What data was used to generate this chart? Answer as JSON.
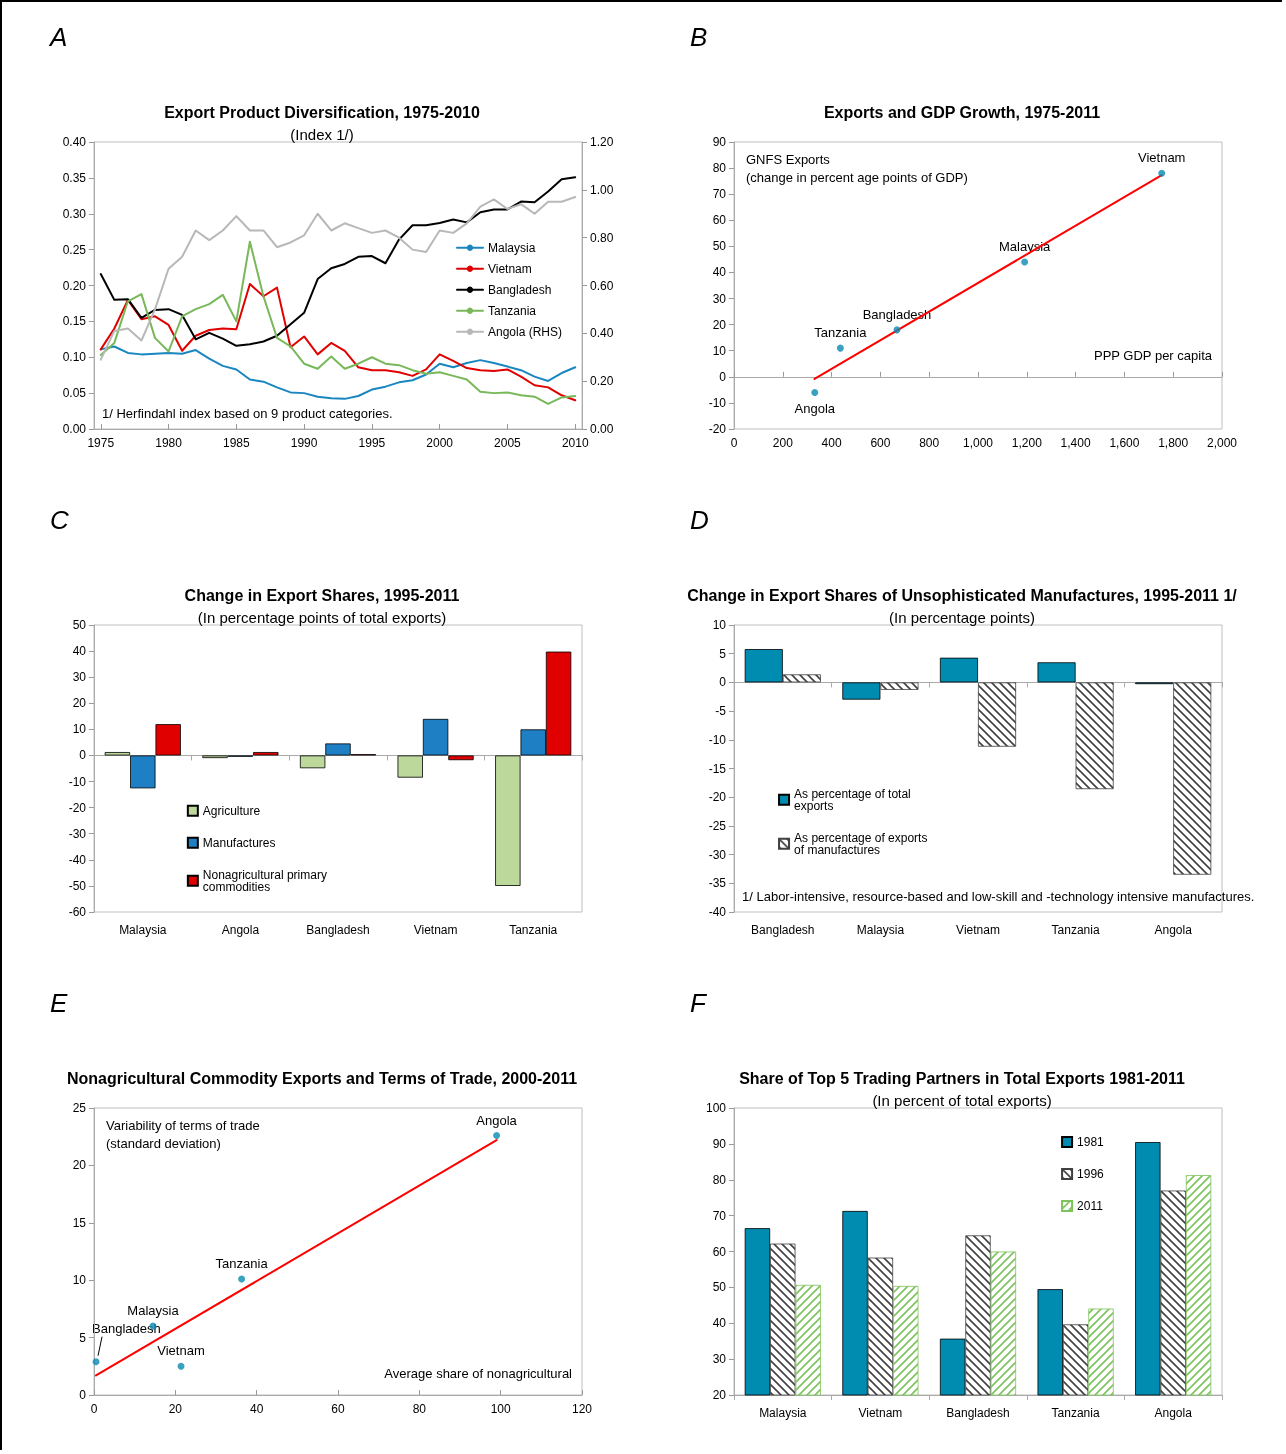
{
  "chart_data": [
    {
      "type": "line",
      "title": "Export Product Diversification, 1975-2010",
      "subtitle": "(Index 1/)",
      "annotations": [
        "A",
        "1/ Herfindahl index based on 9 product categories."
      ],
      "legend": "right",
      "x": [
        1975,
        1976,
        1977,
        1978,
        1979,
        1980,
        1981,
        1982,
        1983,
        1984,
        1985,
        1986,
        1987,
        1988,
        1989,
        1990,
        1991,
        1992,
        1993,
        1994,
        1995,
        1996,
        1997,
        1998,
        1999,
        2000,
        2001,
        2002,
        2003,
        2004,
        2005,
        2006,
        2007,
        2008,
        2009,
        2010
      ],
      "xlim": [
        1974.5,
        2010.5
      ],
      "xticks": [
        1975,
        1980,
        1985,
        1990,
        1995,
        2000,
        2005,
        2010
      ],
      "ylim": [
        0,
        0.4
      ],
      "yticks": [
        {
          "value": 0,
          "label": "0.00"
        },
        0.05,
        {
          "value": 0.1,
          "label": "0.10"
        },
        0.15,
        {
          "value": 0.2,
          "label": "0.20"
        },
        0.25,
        {
          "value": 0.3,
          "label": "0.30"
        },
        0.35,
        {
          "value": 0.4,
          "label": "0.40"
        }
      ],
      "y2lim": [
        0,
        1.2
      ],
      "y2ticks": [
        {
          "value": 0,
          "label": "0.00"
        },
        {
          "value": 0.2,
          "label": "0.20"
        },
        {
          "value": 0.4,
          "label": "0.40"
        },
        {
          "value": 0.6,
          "label": "0.60"
        },
        {
          "value": 0.8,
          "label": "0.80"
        },
        {
          "value": 1,
          "label": "1.00"
        },
        {
          "value": 1.2,
          "label": "1.20"
        }
      ],
      "series": [
        {
          "name": "Malaysia",
          "color": "#1a86c0",
          "values": [
            0.111,
            0.115,
            0.106,
            0.104,
            0.105,
            0.106,
            0.105,
            0.11,
            0.098,
            0.088,
            0.083,
            0.069,
            0.066,
            0.058,
            0.051,
            0.05,
            0.045,
            0.043,
            0.042,
            0.046,
            0.055,
            0.059,
            0.065,
            0.068,
            0.076,
            0.091,
            0.086,
            0.092,
            0.096,
            0.092,
            0.087,
            0.082,
            0.073,
            0.067,
            0.078,
            0.086
          ]
        },
        {
          "name": "Vietnam",
          "color": "#e00000",
          "values": [
            0.111,
            0.14,
            0.18,
            0.153,
            0.157,
            0.145,
            0.109,
            0.13,
            0.138,
            0.14,
            0.139,
            0.202,
            0.185,
            0.197,
            0.114,
            0.129,
            0.104,
            0.12,
            0.109,
            0.086,
            0.082,
            0.082,
            0.079,
            0.074,
            0.083,
            0.104,
            0.095,
            0.085,
            0.082,
            0.081,
            0.083,
            0.073,
            0.061,
            0.058,
            0.047,
            0.04
          ]
        },
        {
          "name": "Bangladesh",
          "color": "#000000",
          "values": [
            0.216,
            0.18,
            0.181,
            0.155,
            0.166,
            0.167,
            0.159,
            0.125,
            0.134,
            0.126,
            0.116,
            0.118,
            0.122,
            0.13,
            0.146,
            0.162,
            0.209,
            0.224,
            0.23,
            0.24,
            0.241,
            0.231,
            0.264,
            0.284,
            0.284,
            0.287,
            0.292,
            0.288,
            0.302,
            0.306,
            0.306,
            0.317,
            0.316,
            0.331,
            0.348,
            0.351
          ]
        },
        {
          "name": "Tanzania",
          "color": "#78b85a",
          "values": [
            0.103,
            0.12,
            0.178,
            0.188,
            0.127,
            0.108,
            0.157,
            0.167,
            0.174,
            0.187,
            0.15,
            0.261,
            0.185,
            0.127,
            0.115,
            0.091,
            0.084,
            0.101,
            0.084,
            0.091,
            0.1,
            0.091,
            0.089,
            0.082,
            0.077,
            0.079,
            0.074,
            0.069,
            0.052,
            0.05,
            0.051,
            0.047,
            0.045,
            0.035,
            0.044,
            0.046
          ]
        },
        {
          "name": "Angola (RHS)",
          "color": "#b8b8b8",
          "axis": "y2",
          "values": [
            0.29,
            0.41,
            0.42,
            0.37,
            0.5,
            0.67,
            0.72,
            0.83,
            0.79,
            0.83,
            0.89,
            0.83,
            0.83,
            0.76,
            0.78,
            0.81,
            0.9,
            0.83,
            0.86,
            0.84,
            0.82,
            0.83,
            0.8,
            0.75,
            0.74,
            0.83,
            0.82,
            0.86,
            0.93,
            0.96,
            0.92,
            0.94,
            0.9,
            0.95,
            0.95,
            0.97
          ]
        }
      ]
    },
    {
      "type": "scatter",
      "title": "Exports and GDP Growth, 1975-2011",
      "xlabel": "PPP GDP per capita",
      "ylabel": "GNFS Exports\n(change in percent age points of GDP)",
      "annotations": [
        "B",
        {
          "text": "Angola",
          "x": 331,
          "y": -6
        },
        {
          "text": "Tanzania",
          "x": 436,
          "y": 11
        },
        {
          "text": "Bangladesh",
          "x": 668,
          "y": 18
        },
        {
          "text": "Malaysia",
          "x": 1191,
          "y": 44
        },
        {
          "text": "Vietnam",
          "x": 1753,
          "y": 78
        }
      ],
      "xlim": [
        0,
        2000
      ],
      "xticks": [
        0,
        200,
        400,
        600,
        800,
        {
          "value": 1000,
          "label": "1,000"
        },
        {
          "value": 1200,
          "label": "1,200"
        },
        {
          "value": 1400,
          "label": "1,400"
        },
        {
          "value": 1600,
          "label": "1,600"
        },
        {
          "value": 1800,
          "label": "1,800"
        },
        {
          "value": 2000,
          "label": "2,000"
        }
      ],
      "ylim": [
        -20,
        90
      ],
      "yticks": [
        -20,
        -10,
        0,
        10,
        20,
        30,
        40,
        50,
        60,
        70,
        80,
        90
      ],
      "series": [
        {
          "type": "scatter",
          "marker": "circle",
          "color": "#0a8ab0",
          "x": [
            331,
            436,
            668,
            1191,
            1753
          ],
          "values": [
            -6,
            11,
            18,
            44,
            78
          ]
        },
        {
          "type": "line",
          "marker": "none",
          "color": "#ff0000",
          "x": [
            330,
            1753
          ],
          "values": [
            -0.8,
            77.3
          ]
        }
      ]
    },
    {
      "type": "bar",
      "title": "Change in Export Shares, 1995-2011",
      "subtitle": "(In percentage points of total exports)",
      "annotations": [
        "C"
      ],
      "legend": "bottom left",
      "categories": [
        "Malaysia",
        "Angola",
        "Bangladesh",
        "Vietnam",
        "Tanzania"
      ],
      "ylim": [
        -60,
        50
      ],
      "yticks": [
        -60,
        -50,
        -40,
        -30,
        -20,
        -10,
        0,
        10,
        20,
        30,
        40,
        50
      ],
      "series": [
        {
          "name": "Agriculture",
          "color": "#bcd89a",
          "values": [
            1.3,
            -1.0,
            -4.9,
            -8.5,
            -50
          ]
        },
        {
          "name": "Manufactures",
          "color": "#1f7fc4",
          "values": [
            -12.6,
            -0.5,
            4.6,
            14,
            10
          ]
        },
        {
          "name": "Nonagricultural primary commodities",
          "color": "#e00000",
          "values": [
            12,
            1.3,
            0.5,
            -1.8,
            39.8
          ]
        }
      ]
    },
    {
      "type": "bar",
      "title": "Change in Export Shares of Unsophisticated Manufactures, 1995-2011 1/",
      "subtitle": "(In percentage points)",
      "annotations": [
        "D",
        "1/ Labor-intensive, resource-based and low-skill and -technology intensive manufactures."
      ],
      "legend": "left",
      "categories": [
        "Bangladesh",
        "Malaysia",
        "Vietnam",
        "Tanzania",
        "Angola"
      ],
      "ylim": [
        -40,
        10
      ],
      "yticks": [
        -40,
        -35,
        -30,
        -25,
        -20,
        -15,
        -10,
        -5,
        0,
        5,
        10
      ],
      "series": [
        {
          "name": "As percentage of total exports",
          "color": "#008bb0",
          "values": [
            5.8,
            -3.0,
            4.3,
            3.5,
            -0.3
          ]
        },
        {
          "name": "As percentage of exports of manufactures",
          "color": "#404040",
          "values": [
            1.4,
            -1.3,
            -11.2,
            -18.6,
            -33.5
          ]
        }
      ]
    },
    {
      "type": "scatter",
      "title": "Nonagricultural Commodity Exports and Terms of Trade, 2000-2011",
      "xlabel": "Average share of nonagricultural",
      "ylabel": "Variability of terms of trade\n(standard deviation)",
      "annotations": [
        "E",
        {
          "text": "Bangladesh",
          "x": 0.5,
          "y": 2.9
        },
        {
          "text": "Malaysia",
          "x": 14.5,
          "y": 6.0
        },
        {
          "text": "Vietnam",
          "x": 21.4,
          "y": 2.5
        },
        {
          "text": "Tanzania",
          "x": 36.3,
          "y": 10.1
        },
        {
          "text": "Angola",
          "x": 99,
          "y": 22.6
        }
      ],
      "xlim": [
        0,
        120
      ],
      "xticks": [
        0,
        20,
        40,
        60,
        80,
        100,
        120
      ],
      "ylim": [
        0,
        25
      ],
      "yticks": [
        0,
        5,
        10,
        15,
        20,
        25
      ],
      "series": [
        {
          "type": "scatter",
          "marker": "circle",
          "color": "#0a8ab0",
          "x": [
            0.5,
            14.5,
            21.4,
            36.3,
            99
          ],
          "values": [
            2.9,
            6.0,
            2.5,
            10.1,
            22.6
          ]
        },
        {
          "type": "line",
          "marker": "none",
          "color": "#ff0000",
          "x": [
            0.5,
            99
          ],
          "values": [
            1.7,
            22.2
          ]
        }
      ]
    },
    {
      "type": "bar",
      "title": "Share of Top 5 Trading Partners in Total Exports 1981-2011",
      "subtitle": "(In percent of total exports)",
      "annotations": [
        "F"
      ],
      "legend": "top right",
      "categories": [
        "Malaysia",
        "Vietnam",
        "Bangladesh",
        "Tanzania",
        "Angola"
      ],
      "ylim": [
        20,
        100
      ],
      "yticks": [
        20,
        30,
        40,
        50,
        60,
        70,
        80,
        90,
        100
      ],
      "series": [
        {
          "name": "1981",
          "color": "#008bb0",
          "values": [
            66.5,
            71.3,
            35.7,
            49.5,
            90.5
          ]
        },
        {
          "name": "1996",
          "color": "#404040",
          "values": [
            62.2,
            58.3,
            64.5,
            39.7,
            77
          ]
        },
        {
          "name": "2011",
          "color": "#7cc35a",
          "values": [
            50.7,
            50.4,
            60,
            44.1,
            81.3
          ]
        }
      ]
    }
  ]
}
